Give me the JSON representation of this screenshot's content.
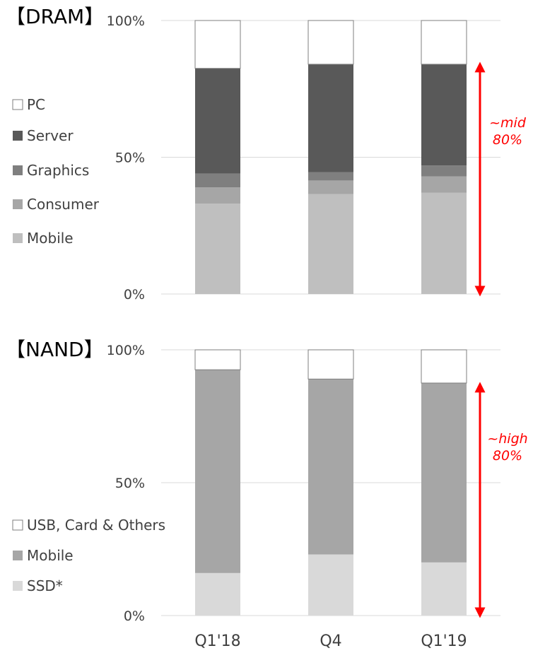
{
  "chart_data": [
    {
      "type": "bar",
      "stacked": true,
      "title": "【DRAM】",
      "categories": [
        "Q1'18",
        "Q4",
        "Q1'19"
      ],
      "ylim": [
        0,
        100
      ],
      "yticks": [
        "0%",
        "50%",
        "100%"
      ],
      "grid": true,
      "legend_position": "left",
      "series": [
        {
          "name": "Mobile",
          "color": "#bfbfbf",
          "values": [
            33,
            36.5,
            37
          ]
        },
        {
          "name": "Consumer",
          "color": "#a6a6a6",
          "values": [
            6,
            5,
            6
          ]
        },
        {
          "name": "Graphics",
          "color": "#7f7f7f",
          "values": [
            5,
            3,
            4
          ]
        },
        {
          "name": "Server",
          "color": "#595959",
          "values": [
            38.5,
            39.5,
            37
          ]
        },
        {
          "name": "PC",
          "color": "#ffffff",
          "values": [
            17.5,
            16,
            16
          ]
        }
      ],
      "annotation": {
        "lines": [
          "~mid",
          "80%"
        ],
        "color": "#ff0000",
        "range": [
          0,
          84
        ]
      }
    },
    {
      "type": "bar",
      "stacked": true,
      "title": "【NAND】",
      "categories": [
        "Q1'18",
        "Q4",
        "Q1'19"
      ],
      "ylim": [
        0,
        100
      ],
      "yticks": [
        "0%",
        "50%",
        "100%"
      ],
      "grid": true,
      "legend_position": "left",
      "series": [
        {
          "name": "SSD*",
          "color": "#d9d9d9",
          "values": [
            16,
            23,
            20
          ]
        },
        {
          "name": "Mobile",
          "color": "#a6a6a6",
          "values": [
            76.5,
            66,
            67.5
          ]
        },
        {
          "name": "USB, Card & Others",
          "color": "#ffffff",
          "values": [
            7.5,
            11,
            12.5
          ]
        }
      ],
      "annotation": {
        "lines": [
          "~high",
          "80%"
        ],
        "color": "#ff0000",
        "range": [
          0,
          87
        ]
      }
    }
  ]
}
